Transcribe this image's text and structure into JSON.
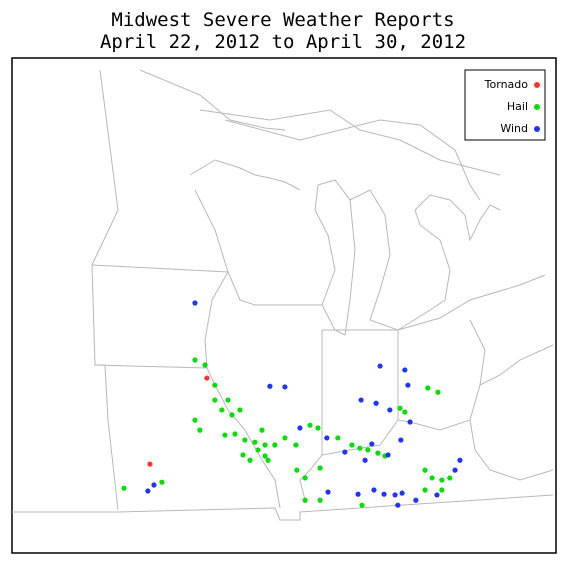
{
  "chart_data": {
    "type": "scatter",
    "title": "Midwest Severe Weather Reports",
    "subtitle": "April 22, 2012 to April 30, 2012",
    "xlim": [
      -97.64,
      -79.86
    ],
    "ylim": [
      35.29,
      49.27
    ],
    "legend": "top-right",
    "series": [
      {
        "name": "Tornado",
        "color": "#ff3333",
        "x": [
          -91.27,
          -93.13
        ],
        "y": [
          40.23,
          37.8
        ]
      },
      {
        "name": "Hail",
        "color": "#00dd00",
        "x": [
          -93.98,
          -92.74,
          -91.66,
          -91.33,
          -91.01,
          -90.78,
          -90.58,
          -90.19,
          -91.66,
          -91.5,
          -90.68,
          -90.35,
          -90.03,
          -89.7,
          -89.37,
          -89.05,
          -88.72,
          -88.36,
          -87.9,
          -87.64,
          -90.09,
          -89.86,
          -89.27,
          -88.33,
          -88.06,
          -87.57,
          -86.99,
          -86.53,
          -86.27,
          -86.01,
          -85.68,
          -85.45,
          -88.06,
          -87.57,
          -86.2,
          -84.14,
          -83.91,
          -83.59,
          -83.33,
          -84.14,
          -83.59,
          -84.05,
          -83.72,
          -84.8,
          -84.96,
          -89.47,
          -90.45,
          -89.6,
          -89.37,
          -91.01
        ],
        "y": [
          37.12,
          37.29,
          40.74,
          40.6,
          40.03,
          39.33,
          39.61,
          39.33,
          39.04,
          38.76,
          38.62,
          38.65,
          38.48,
          38.42,
          38.34,
          38.34,
          38.54,
          38.34,
          38.9,
          38.82,
          38.06,
          37.91,
          37.91,
          37.63,
          37.41,
          37.69,
          38.54,
          38.34,
          38.25,
          38.2,
          38.11,
          38.03,
          36.78,
          36.78,
          36.64,
          37.63,
          37.41,
          37.35,
          37.41,
          37.07,
          37.07,
          39.95,
          39.83,
          39.27,
          39.38,
          38.76,
          39.19,
          38.2,
          38.03,
          39.61
        ]
      },
      {
        "name": "Wind",
        "color": "#2233ff",
        "x": [
          -91.66,
          -89.21,
          -88.72,
          -85.61,
          -84.8,
          -84.7,
          -86.23,
          -85.74,
          -84.63,
          -88.23,
          -87.35,
          -86.76,
          -85.88,
          -84.93,
          -86.1,
          -83.0,
          -83.16,
          -87.31,
          -86.33,
          -85.81,
          -85.48,
          -85.12,
          -84.89,
          -85.03,
          -84.44,
          -83.75,
          -93.2,
          -93.0,
          -85.35,
          -85.29
        ],
        "y": [
          42.35,
          40.0,
          39.98,
          40.57,
          40.46,
          40.03,
          39.61,
          39.52,
          38.99,
          38.82,
          38.54,
          38.14,
          38.37,
          38.48,
          37.91,
          37.91,
          37.63,
          37.01,
          36.95,
          37.07,
          36.95,
          36.93,
          36.98,
          36.64,
          36.78,
          36.93,
          37.04,
          37.21,
          38.06,
          39.33
        ]
      }
    ]
  }
}
